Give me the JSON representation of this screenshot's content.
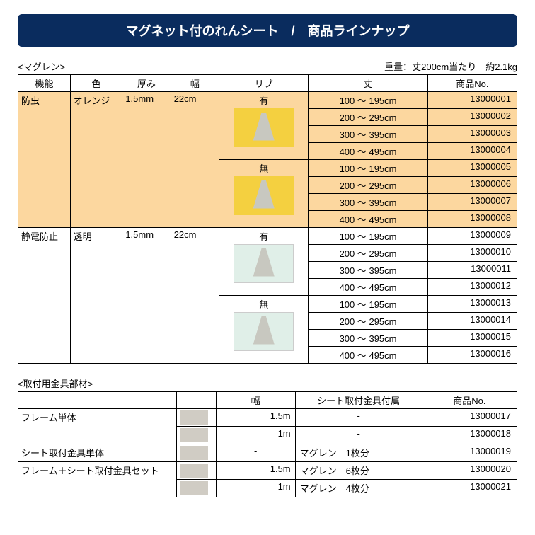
{
  "title": "マグネット付のれんシート　/　商品ラインナップ",
  "section1": {
    "label": "<マグレン>",
    "weight_note": "重量：丈200cm当たり　約2.1kg",
    "headers": [
      "機能",
      "色",
      "厚み",
      "幅",
      "リブ",
      "丈",
      "商品No."
    ],
    "col_widths": [
      "70px",
      "70px",
      "65px",
      "65px",
      "120px",
      "160px",
      "120px"
    ],
    "groups": [
      {
        "feature": "防虫",
        "color": "オレンジ",
        "thickness": "1.5mm",
        "width": "22cm",
        "tint": "orange",
        "ribs": [
          {
            "rib": "有",
            "thumb": "orange",
            "rows": [
              {
                "len": "100 ～ 195cm",
                "no": "13000001"
              },
              {
                "len": "200 ～ 295cm",
                "no": "13000002"
              },
              {
                "len": "300 ～ 395cm",
                "no": "13000003"
              },
              {
                "len": "400 ～ 495cm",
                "no": "13000004"
              }
            ]
          },
          {
            "rib": "無",
            "thumb": "orange",
            "rows": [
              {
                "len": "100 ～ 195cm",
                "no": "13000005"
              },
              {
                "len": "200 ～ 295cm",
                "no": "13000006"
              },
              {
                "len": "300 ～ 395cm",
                "no": "13000007"
              },
              {
                "len": "400 ～ 495cm",
                "no": "13000008"
              }
            ]
          }
        ]
      },
      {
        "feature": "静電防止",
        "color": "透明",
        "thickness": "1.5mm",
        "width": "22cm",
        "tint": "",
        "ribs": [
          {
            "rib": "有",
            "thumb": "clear",
            "rows": [
              {
                "len": "100 ～ 195cm",
                "no": "13000009"
              },
              {
                "len": "200 ～ 295cm",
                "no": "13000010"
              },
              {
                "len": "300 ～ 395cm",
                "no": "13000011"
              },
              {
                "len": "400 ～ 495cm",
                "no": "13000012"
              }
            ]
          },
          {
            "rib": "無",
            "thumb": "clear",
            "rows": [
              {
                "len": "100 ～ 195cm",
                "no": "13000013"
              },
              {
                "len": "200 ～ 295cm",
                "no": "13000014"
              },
              {
                "len": "300 ～ 395cm",
                "no": "13000015"
              },
              {
                "len": "400 ～ 495cm",
                "no": "13000016"
              }
            ]
          }
        ]
      }
    ]
  },
  "section2": {
    "label": "<取付用金具部材>",
    "headers": [
      "",
      "",
      "幅",
      "シート取付金具付属",
      "商品No."
    ],
    "col_widths": [
      "200px",
      "50px",
      "100px",
      "160px",
      "120px"
    ],
    "rows": [
      {
        "name": "フレーム単体",
        "span": 2,
        "thumb": true,
        "w": "1.5m",
        "att": "-",
        "no": "13000017"
      },
      {
        "name": "",
        "span": 0,
        "thumb": true,
        "w": "1m",
        "att": "-",
        "no": "13000018"
      },
      {
        "name": "シート取付金具単体",
        "span": 1,
        "thumb": true,
        "w": "-",
        "att": "マグレン　1枚分",
        "no": "13000019"
      },
      {
        "name": "フレーム＋シート取付金具セット",
        "span": 2,
        "thumb": true,
        "w": "1.5m",
        "att": "マグレン　6枚分",
        "no": "13000020"
      },
      {
        "name": "",
        "span": 0,
        "thumb": true,
        "w": "1m",
        "att": "マグレン　4枚分",
        "no": "13000021"
      }
    ]
  }
}
